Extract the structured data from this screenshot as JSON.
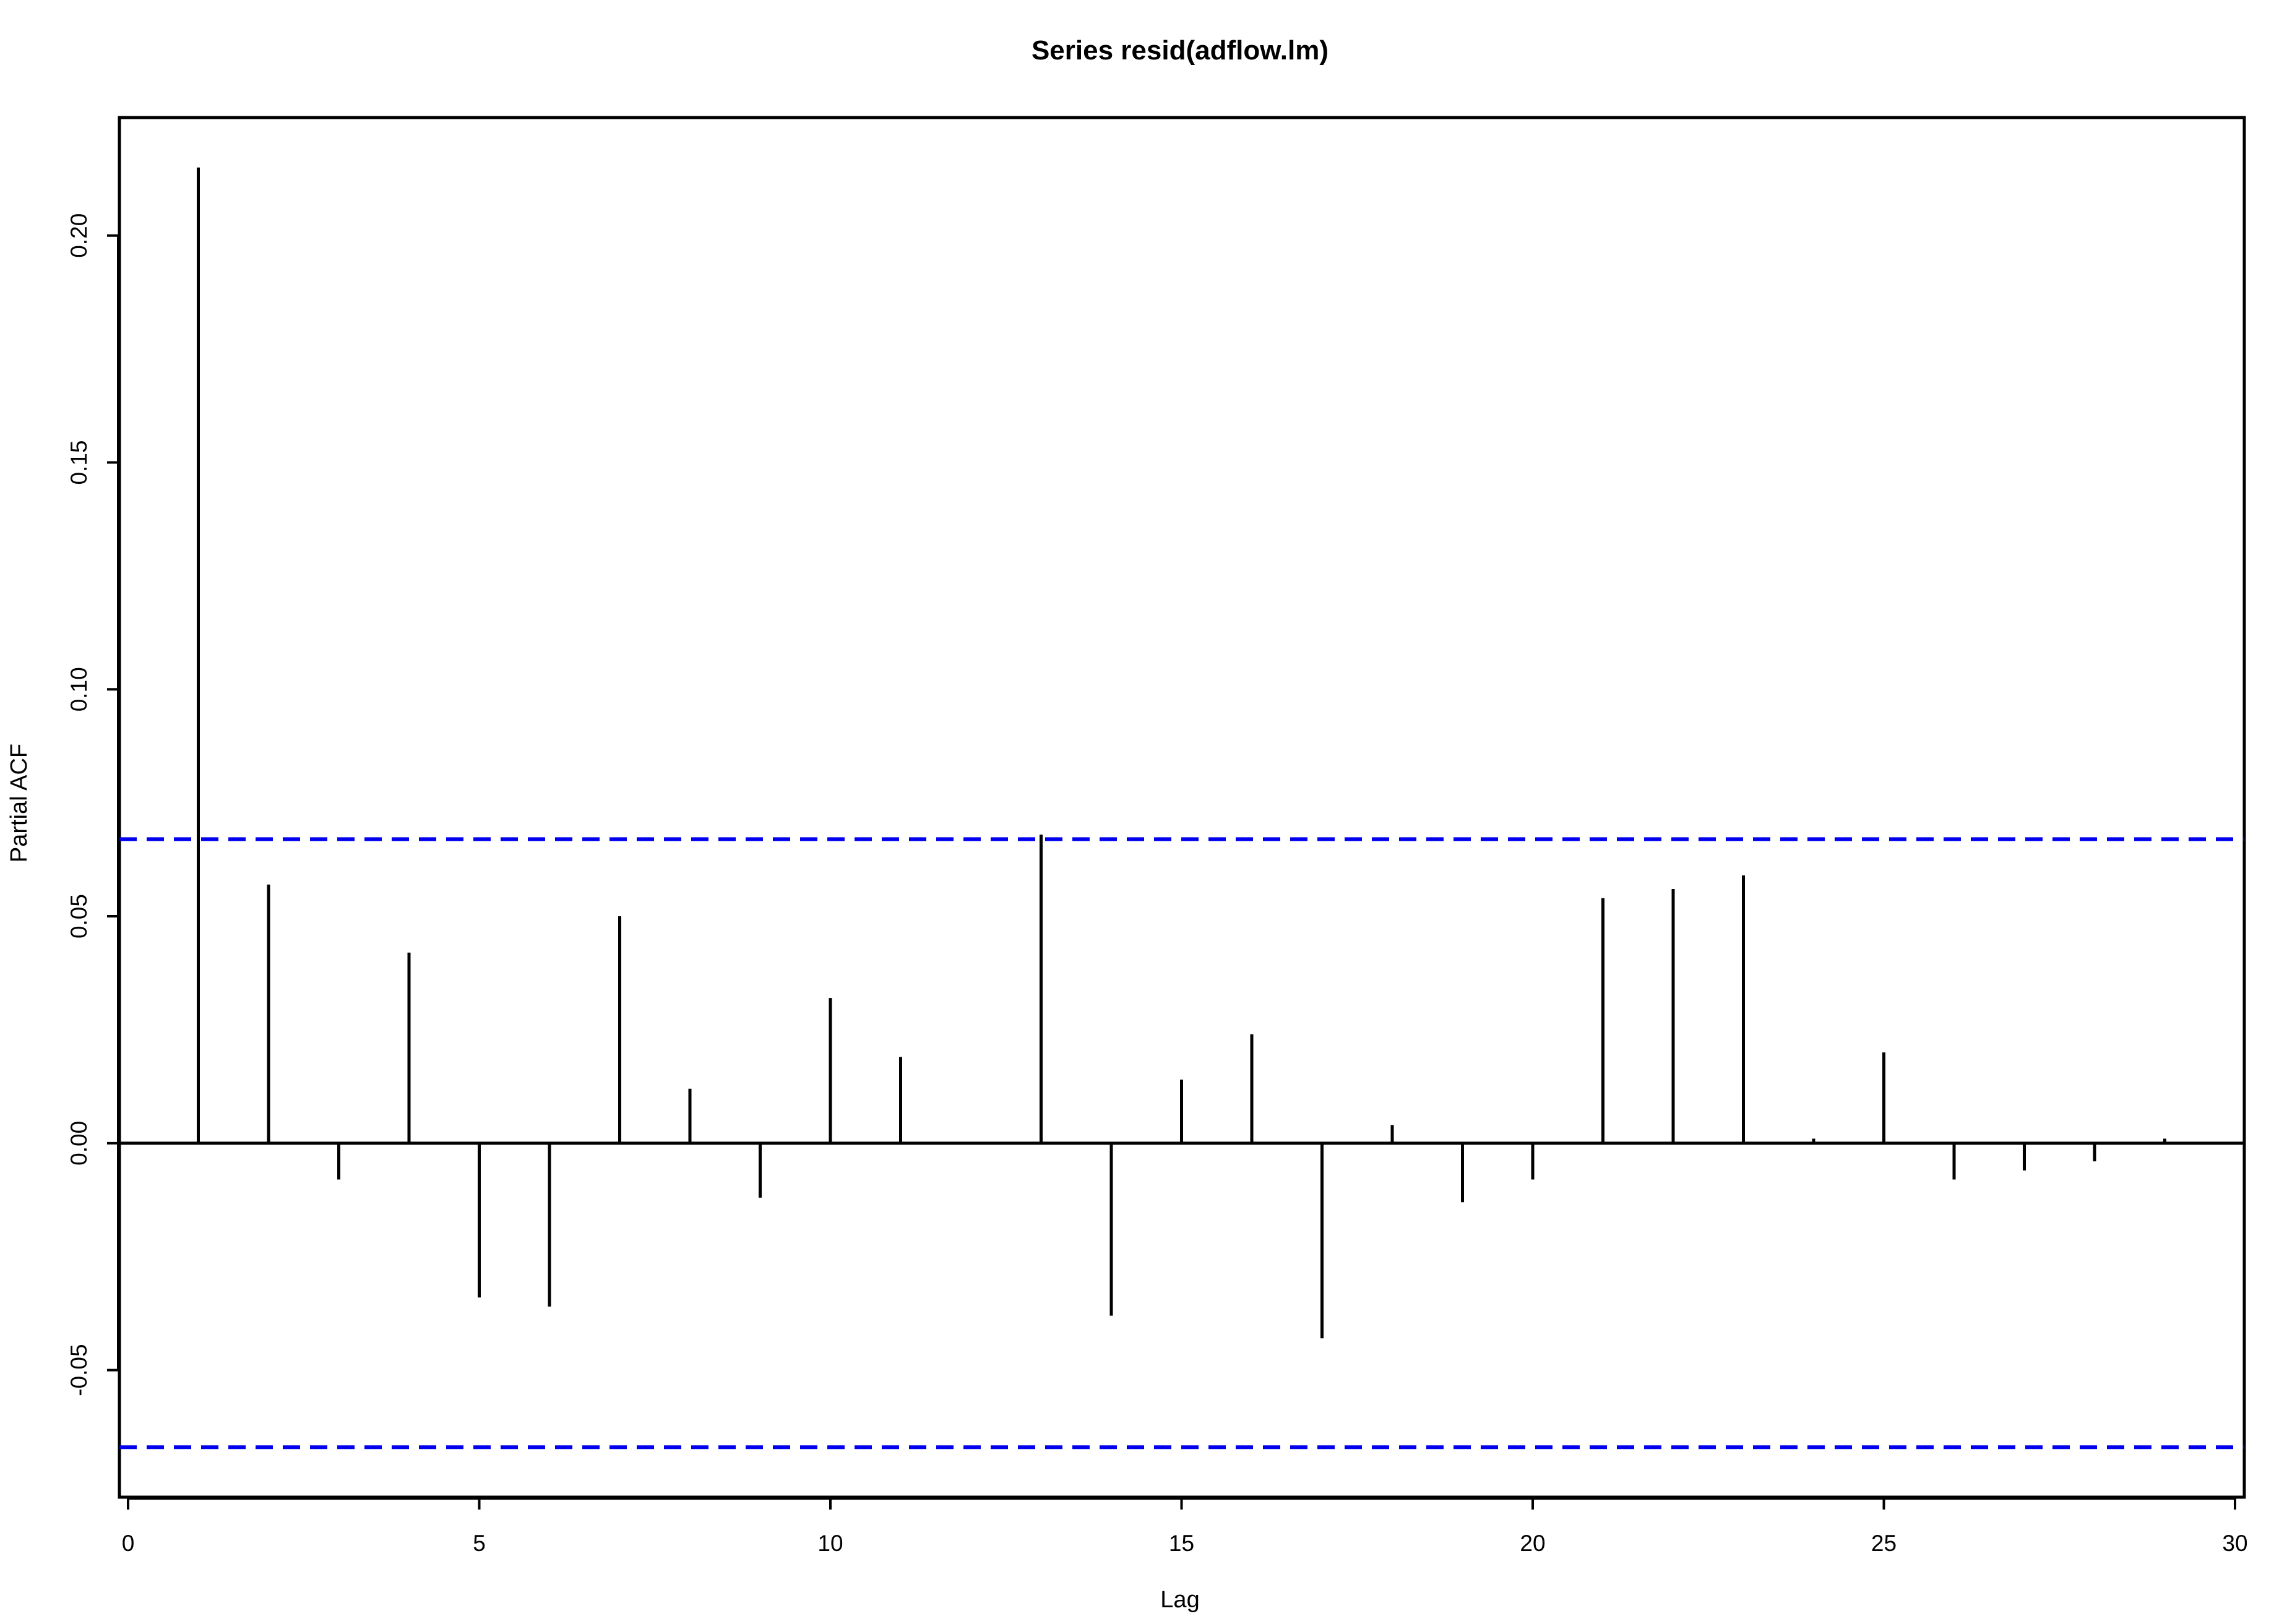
{
  "chart_data": {
    "type": "bar",
    "title": "Series  resid(adflow.lm)",
    "xlabel": "Lag",
    "ylabel": "Partial ACF",
    "xlim": [
      0,
      30
    ],
    "ylim": [
      -0.078,
      0.226
    ],
    "x_ticks": [
      0,
      5,
      10,
      15,
      20,
      25,
      30
    ],
    "x_tick_labels": [
      "0",
      "5",
      "10",
      "15",
      "20",
      "25",
      "30"
    ],
    "y_ticks": [
      -0.05,
      0.0,
      0.05,
      0.1,
      0.15,
      0.2
    ],
    "y_tick_labels": [
      "-0.05",
      "0.00",
      "0.05",
      "0.10",
      "0.15",
      "0.20"
    ],
    "lags": [
      1,
      2,
      3,
      4,
      5,
      6,
      7,
      8,
      9,
      10,
      11,
      12,
      13,
      14,
      15,
      16,
      17,
      18,
      19,
      20,
      21,
      22,
      23,
      24,
      25,
      26,
      27,
      28,
      29
    ],
    "values": [
      0.215,
      0.057,
      -0.008,
      0.042,
      -0.034,
      -0.036,
      0.05,
      0.012,
      -0.012,
      0.032,
      0.019,
      0.0,
      0.068,
      -0.038,
      0.014,
      0.024,
      -0.043,
      0.004,
      -0.013,
      -0.008,
      0.054,
      0.056,
      0.059,
      0.001,
      0.02,
      -0.008,
      -0.006,
      -0.004,
      0.001
    ],
    "confidence_bounds": [
      0.067,
      -0.067
    ],
    "colors": {
      "bars": "#000000",
      "bounds": "#0000ee",
      "zero_line": "#000000"
    },
    "grid": false,
    "legend": "none"
  }
}
